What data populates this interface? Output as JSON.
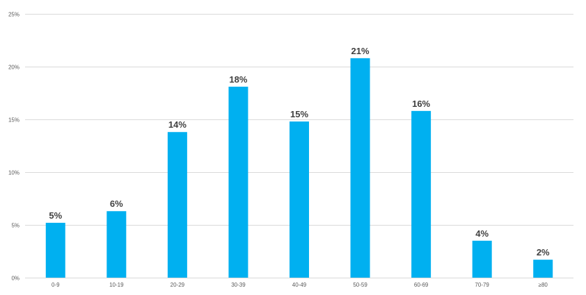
{
  "chart_data": {
    "type": "bar",
    "categories": [
      "0-9",
      "10-19",
      "20-29",
      "30-39",
      "40-49",
      "50-59",
      "60-69",
      "70-79",
      "≥80"
    ],
    "values": [
      5.2,
      6.3,
      13.8,
      18.1,
      14.8,
      20.8,
      15.8,
      3.5,
      1.7
    ],
    "data_labels": [
      "5%",
      "6%",
      "14%",
      "18%",
      "15%",
      "21%",
      "16%",
      "4%",
      "2%"
    ],
    "yticks": [
      "0%",
      "5%",
      "10%",
      "15%",
      "20%",
      "25%"
    ],
    "ytick_values": [
      0,
      5,
      10,
      15,
      20,
      25
    ],
    "ylim": [
      0,
      25
    ],
    "grid": true,
    "legend": "none",
    "bar_color": "#00b0f0",
    "grid_color": "#d9d9d9"
  }
}
